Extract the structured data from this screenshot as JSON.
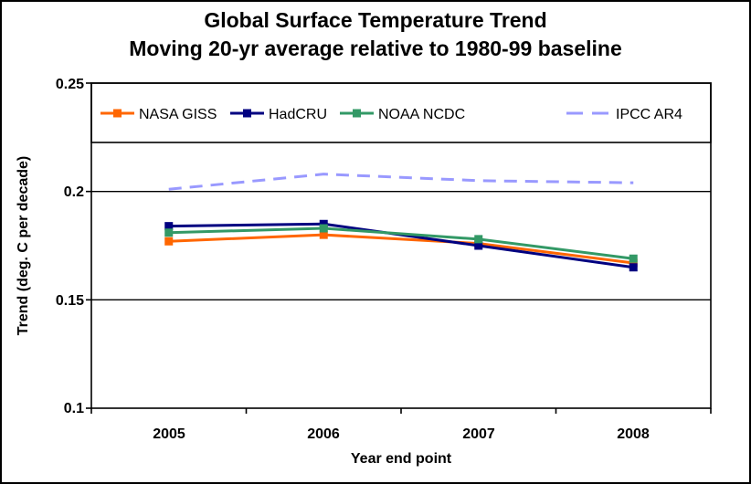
{
  "chart_data": {
    "type": "line",
    "title": "Global Surface Temperature Trend",
    "subtitle": "Moving 20-yr average relative to 1980-99 baseline",
    "categories": [
      "2005",
      "2006",
      "2007",
      "2008"
    ],
    "series": [
      {
        "name": "NASA GISS",
        "values": [
          0.177,
          0.18,
          0.176,
          0.167
        ],
        "color": "#FF6600",
        "line_style": "solid",
        "marker": "square"
      },
      {
        "name": "HadCRU",
        "values": [
          0.184,
          0.185,
          0.175,
          0.165
        ],
        "color": "#000080",
        "line_style": "solid",
        "marker": "square"
      },
      {
        "name": "NOAA NCDC",
        "values": [
          0.181,
          0.183,
          0.178,
          0.169
        ],
        "color": "#339966",
        "line_style": "solid",
        "marker": "square"
      },
      {
        "name": "IPCC AR4",
        "values": [
          0.201,
          0.208,
          0.205,
          0.204
        ],
        "color": "#9999FF",
        "line_style": "dashed",
        "marker": "none"
      }
    ],
    "xlabel": "Year end point",
    "ylabel": "Trend (deg. C per decade)",
    "ylim": [
      0.1,
      0.25
    ],
    "yticks": [
      "0.25",
      "0.2",
      "0.15",
      "0.1"
    ],
    "ytick_values": [
      0.25,
      0.2,
      0.15,
      0.1
    ],
    "grid": "horizontal-major",
    "legend_position": "top-inside-boxed",
    "colors": {
      "background": "#FFFFFF",
      "axis": "#000000",
      "text": "#000000"
    }
  }
}
